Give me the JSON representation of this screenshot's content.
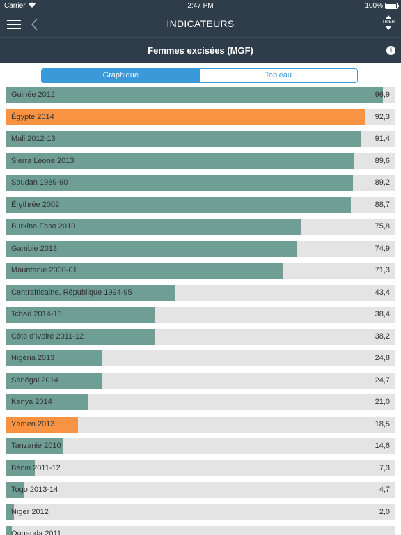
{
  "status": {
    "carrier": "Carrier",
    "time": "2:47 PM",
    "battery": "100%"
  },
  "nav": {
    "title": "INDICATEURS",
    "sort_label": "TRIER"
  },
  "header": {
    "title": "Femmes excisées (MGF)"
  },
  "tabs": {
    "graph": "Graphique",
    "table": "Tableau"
  },
  "colors": {
    "default_bar": "#6f9e94",
    "highlight_bar": "#f79343",
    "track": "#e4e4e4",
    "nav_background": "#2f3d4a",
    "accent": "#3a9ad9"
  },
  "chart_data": {
    "type": "bar",
    "orientation": "horizontal",
    "xlim": [
      0,
      100
    ],
    "categories": [
      "Guinée 2012",
      "Égypte 2014",
      "Mali 2012-13",
      "Sierra Leone 2013",
      "Soudan 1989-90",
      "Érythrée 2002",
      "Burkina Faso 2010",
      "Gambie 2013",
      "Mauritanie 2000-01",
      "Centrafricaine, République 1994-95",
      "Tchad 2014-15",
      "Côte d'Ivoire 2011-12",
      "Nigéria 2013",
      "Sénégal 2014",
      "Kenya 2014",
      "Yémen 2013",
      "Tanzanie 2010",
      "Bénin 2011-12",
      "Togo 2013-14",
      "Niger 2012",
      "Ouganda 2011"
    ],
    "values": [
      96.9,
      92.3,
      91.4,
      89.6,
      89.2,
      88.7,
      75.8,
      74.9,
      71.3,
      43.4,
      38.4,
      38.2,
      24.8,
      24.7,
      21.0,
      18.5,
      14.6,
      7.3,
      4.7,
      2.0,
      1.4
    ],
    "value_labels": [
      "96,9",
      "92,3",
      "91,4",
      "89,6",
      "89,2",
      "88,7",
      "75,8",
      "74,9",
      "71,3",
      "43,4",
      "38,4",
      "38,2",
      "24,8",
      "24,7",
      "21,0",
      "18,5",
      "14,6",
      "7,3",
      "4,7",
      "2,0",
      ""
    ],
    "highlighted": [
      "Égypte 2014",
      "Yémen 2013"
    ]
  }
}
